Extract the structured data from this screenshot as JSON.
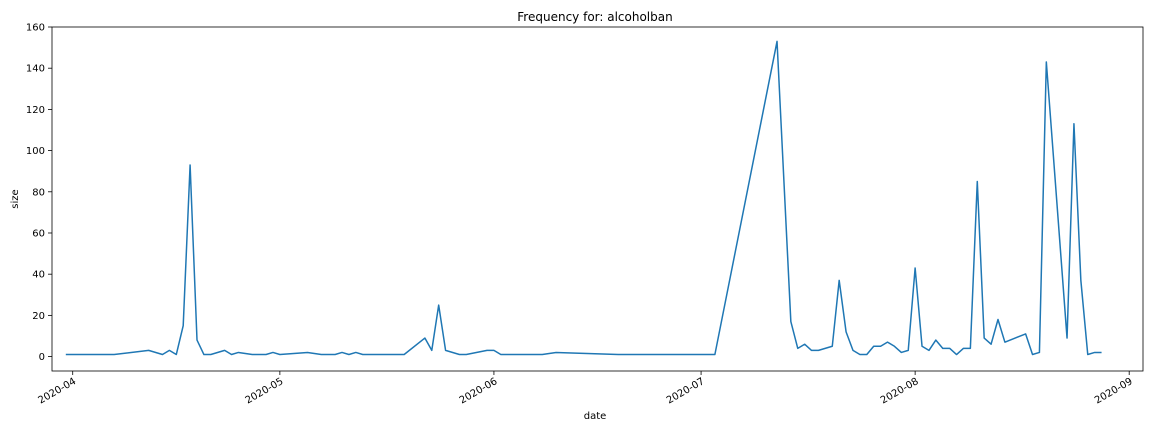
{
  "chart_data": {
    "type": "line",
    "title": "Frequency for: alcoholban",
    "xlabel": "date",
    "ylabel": "size",
    "ylim": [
      -7,
      160
    ],
    "xlim": [
      "2020-03-29",
      "2020-09-03"
    ],
    "grid": false,
    "colors": {
      "line": "#1f77b4",
      "axes": "#000000"
    },
    "y_ticks": [
      0,
      20,
      40,
      60,
      80,
      100,
      120,
      140,
      160
    ],
    "x_ticks": [
      {
        "date": "2020-04-01",
        "label": "2020-04"
      },
      {
        "date": "2020-05-01",
        "label": "2020-05"
      },
      {
        "date": "2020-06-01",
        "label": "2020-06"
      },
      {
        "date": "2020-07-01",
        "label": "2020-07"
      },
      {
        "date": "2020-08-01",
        "label": "2020-08"
      },
      {
        "date": "2020-09-01",
        "label": "2020-09"
      }
    ],
    "series": [
      {
        "x": [
          "2020-03-31",
          "2020-04-07",
          "2020-04-12",
          "2020-04-14",
          "2020-04-15",
          "2020-04-16",
          "2020-04-17",
          "2020-04-18",
          "2020-04-19",
          "2020-04-20",
          "2020-04-21",
          "2020-04-23",
          "2020-04-24",
          "2020-04-25",
          "2020-04-27",
          "2020-04-29",
          "2020-04-30",
          "2020-05-01",
          "2020-05-05",
          "2020-05-07",
          "2020-05-09",
          "2020-05-10",
          "2020-05-11",
          "2020-05-12",
          "2020-05-13",
          "2020-05-19",
          "2020-05-22",
          "2020-05-23",
          "2020-05-24",
          "2020-05-25",
          "2020-05-27",
          "2020-05-28",
          "2020-05-31",
          "2020-06-01",
          "2020-06-02",
          "2020-06-05",
          "2020-06-08",
          "2020-06-10",
          "2020-06-19",
          "2020-07-03",
          "2020-07-12",
          "2020-07-14",
          "2020-07-15",
          "2020-07-16",
          "2020-07-17",
          "2020-07-18",
          "2020-07-20",
          "2020-07-21",
          "2020-07-22",
          "2020-07-23",
          "2020-07-24",
          "2020-07-25",
          "2020-07-26",
          "2020-07-27",
          "2020-07-28",
          "2020-07-29",
          "2020-07-30",
          "2020-07-31",
          "2020-08-01",
          "2020-08-02",
          "2020-08-03",
          "2020-08-04",
          "2020-08-05",
          "2020-08-06",
          "2020-08-07",
          "2020-08-08",
          "2020-08-09",
          "2020-08-10",
          "2020-08-11",
          "2020-08-12",
          "2020-08-13",
          "2020-08-14",
          "2020-08-17",
          "2020-08-18",
          "2020-08-19",
          "2020-08-20",
          "2020-08-23",
          "2020-08-24",
          "2020-08-25",
          "2020-08-26",
          "2020-08-27",
          "2020-08-28"
        ],
        "y": [
          1,
          1,
          3,
          1,
          3,
          1,
          15,
          93,
          8,
          1,
          1,
          3,
          1,
          2,
          1,
          1,
          2,
          1,
          2,
          1,
          1,
          2,
          1,
          2,
          1,
          1,
          9,
          3,
          25,
          3,
          1,
          1,
          3,
          3,
          1,
          1,
          1,
          2,
          1,
          1,
          153,
          17,
          4,
          6,
          3,
          3,
          5,
          37,
          12,
          3,
          1,
          1,
          5,
          5,
          7,
          5,
          2,
          3,
          43,
          5,
          3,
          8,
          4,
          4,
          1,
          4,
          4,
          85,
          9,
          6,
          18,
          7,
          11,
          1,
          2,
          143,
          9,
          113,
          37,
          1,
          2,
          2
        ]
      }
    ]
  }
}
